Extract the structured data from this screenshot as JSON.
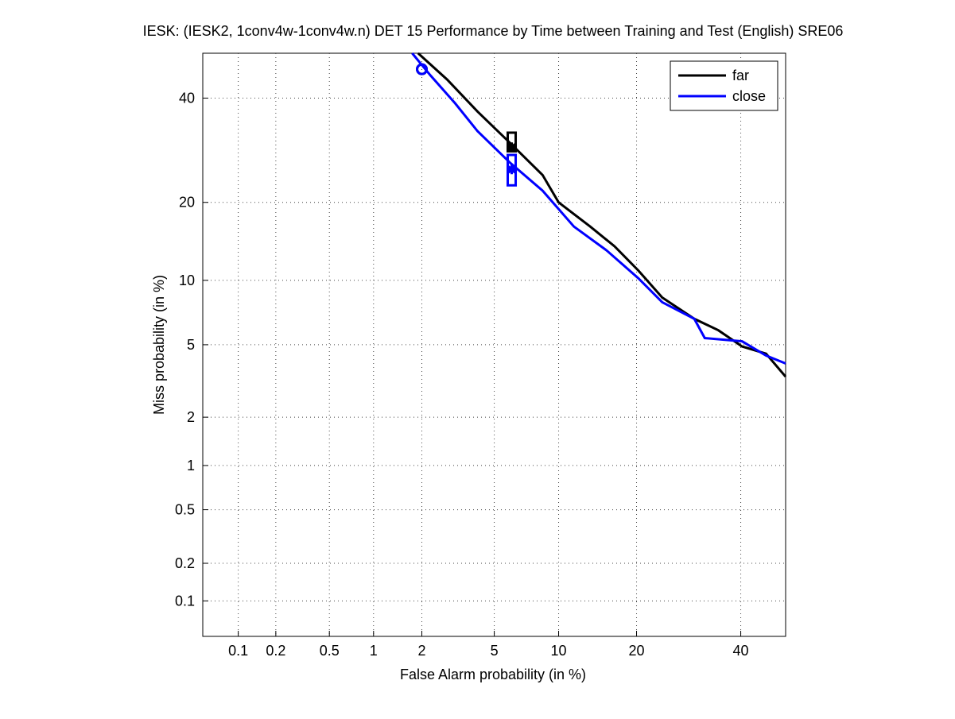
{
  "chart_data": {
    "type": "line",
    "scale": "probit",
    "title": "IESK: (IESK2, 1conv4w-1conv4w.n) DET 15 Performance by Time between Training and Test (English) SRE06",
    "x_label": "False Alarm probability (in %)",
    "y_label": "Miss probability (in %)",
    "xlim": [
      0.05,
      50
    ],
    "ylim": [
      0.05,
      50
    ],
    "xticks": [
      0.1,
      0.2,
      0.5,
      1,
      2,
      5,
      10,
      20,
      40
    ],
    "yticks": [
      0.1,
      0.2,
      0.5,
      1,
      2,
      5,
      10,
      20,
      40
    ],
    "grid": true,
    "legend": "northeast",
    "series": [
      {
        "name": "far",
        "color": "#000000",
        "x": [
          1.9,
          2.8,
          4.1,
          6.0,
          8.5,
          10,
          13.5,
          16.7,
          20.3,
          24.3,
          30.3,
          35.2,
          40.3,
          45.6,
          50
        ],
        "values": [
          50,
          44.1,
          37.1,
          30.6,
          24.6,
          20,
          16.4,
          13.8,
          11.0,
          8.4,
          6.7,
          5.9,
          4.9,
          4.5,
          3.4
        ],
        "min_dcf": [
          2.0,
          46.4
        ],
        "act_dcf": [
          6.1,
          29.8
        ],
        "act_dcf_interval": [
          29.0,
          32.7
        ]
      },
      {
        "name": "close",
        "color": "#0000ff",
        "x": [
          1.75,
          2.25,
          3.1,
          4.1,
          6.0,
          8.5,
          11.6,
          15.6,
          20.3,
          24.3,
          30.3,
          32.4,
          40.3,
          45.6,
          50
        ],
        "values": [
          50,
          45.0,
          38.9,
          33.0,
          26.8,
          21.9,
          16.4,
          13.3,
          10.2,
          8.0,
          6.7,
          5.4,
          5.2,
          4.4,
          4.0
        ],
        "min_dcf": [
          2.0,
          46.4
        ],
        "act_dcf": [
          6.1,
          25.6
        ],
        "act_dcf_interval": [
          22.8,
          28.3
        ]
      }
    ]
  }
}
